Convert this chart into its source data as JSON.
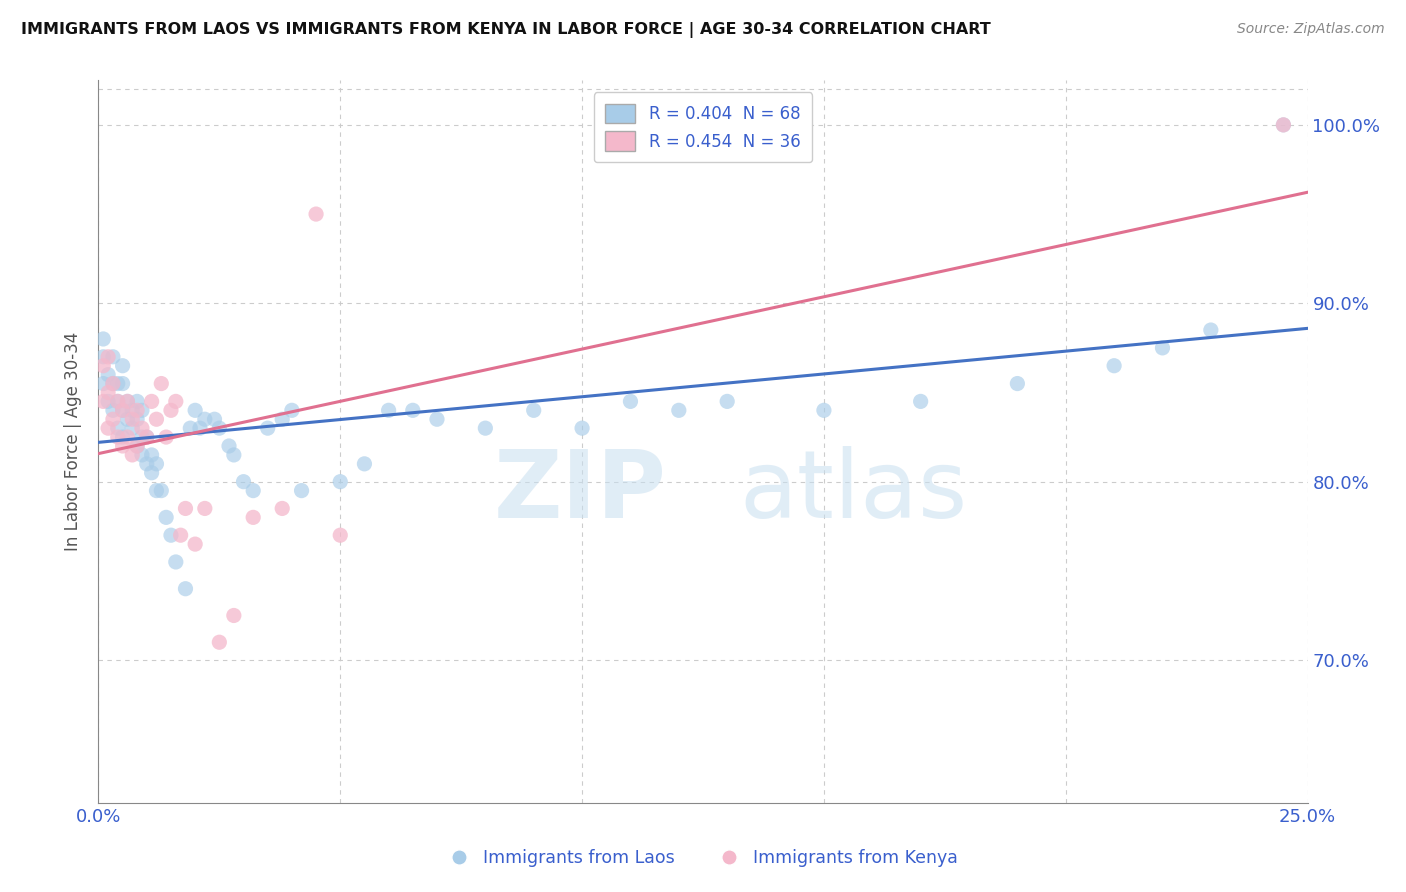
{
  "title": "IMMIGRANTS FROM LAOS VS IMMIGRANTS FROM KENYA IN LABOR FORCE | AGE 30-34 CORRELATION CHART",
  "source": "Source: ZipAtlas.com",
  "ylabel_label": "In Labor Force | Age 30-34",
  "x_min": 0.0,
  "x_max": 0.25,
  "y_min": 0.62,
  "y_max": 1.025,
  "x_ticks": [
    0.0,
    0.05,
    0.1,
    0.15,
    0.2,
    0.25
  ],
  "y_ticks": [
    0.7,
    0.8,
    0.9,
    1.0
  ],
  "laos_color": "#a8cce8",
  "kenya_color": "#f4b8cb",
  "laos_line_color": "#4472c4",
  "kenya_line_color": "#e07090",
  "R_laos": 0.404,
  "N_laos": 68,
  "R_kenya": 0.454,
  "N_kenya": 36,
  "laos_x": [
    0.001,
    0.001,
    0.001,
    0.002,
    0.002,
    0.003,
    0.003,
    0.003,
    0.004,
    0.004,
    0.004,
    0.005,
    0.005,
    0.005,
    0.005,
    0.006,
    0.006,
    0.007,
    0.007,
    0.008,
    0.008,
    0.008,
    0.009,
    0.009,
    0.009,
    0.01,
    0.01,
    0.011,
    0.011,
    0.012,
    0.012,
    0.013,
    0.014,
    0.015,
    0.016,
    0.018,
    0.019,
    0.02,
    0.021,
    0.022,
    0.024,
    0.025,
    0.027,
    0.028,
    0.03,
    0.032,
    0.035,
    0.038,
    0.04,
    0.042,
    0.05,
    0.055,
    0.06,
    0.065,
    0.07,
    0.08,
    0.09,
    0.1,
    0.11,
    0.12,
    0.13,
    0.15,
    0.17,
    0.19,
    0.21,
    0.22,
    0.23,
    0.245
  ],
  "laos_y": [
    0.855,
    0.87,
    0.88,
    0.845,
    0.86,
    0.84,
    0.855,
    0.87,
    0.83,
    0.845,
    0.855,
    0.825,
    0.84,
    0.855,
    0.865,
    0.835,
    0.845,
    0.83,
    0.84,
    0.82,
    0.835,
    0.845,
    0.815,
    0.825,
    0.84,
    0.81,
    0.825,
    0.805,
    0.815,
    0.795,
    0.81,
    0.795,
    0.78,
    0.77,
    0.755,
    0.74,
    0.83,
    0.84,
    0.83,
    0.835,
    0.835,
    0.83,
    0.82,
    0.815,
    0.8,
    0.795,
    0.83,
    0.835,
    0.84,
    0.795,
    0.8,
    0.81,
    0.84,
    0.84,
    0.835,
    0.83,
    0.84,
    0.83,
    0.845,
    0.84,
    0.845,
    0.84,
    0.845,
    0.855,
    0.865,
    0.875,
    0.885,
    1.0
  ],
  "kenya_x": [
    0.001,
    0.001,
    0.002,
    0.002,
    0.002,
    0.003,
    0.003,
    0.004,
    0.004,
    0.005,
    0.005,
    0.006,
    0.006,
    0.007,
    0.007,
    0.008,
    0.008,
    0.009,
    0.01,
    0.011,
    0.012,
    0.013,
    0.014,
    0.015,
    0.016,
    0.017,
    0.018,
    0.02,
    0.022,
    0.025,
    0.028,
    0.032,
    0.038,
    0.045,
    0.05,
    0.245
  ],
  "kenya_y": [
    0.845,
    0.865,
    0.83,
    0.85,
    0.87,
    0.835,
    0.855,
    0.825,
    0.845,
    0.82,
    0.84,
    0.825,
    0.845,
    0.815,
    0.835,
    0.82,
    0.84,
    0.83,
    0.825,
    0.845,
    0.835,
    0.855,
    0.825,
    0.84,
    0.845,
    0.77,
    0.785,
    0.765,
    0.785,
    0.71,
    0.725,
    0.78,
    0.785,
    0.95,
    0.77,
    1.0
  ],
  "watermark_zip": "ZIP",
  "watermark_atlas": "atlas",
  "background_color": "#ffffff",
  "grid_color": "#cccccc",
  "label_color": "#3a5fcd",
  "title_color": "#111111",
  "spine_color": "#888888"
}
